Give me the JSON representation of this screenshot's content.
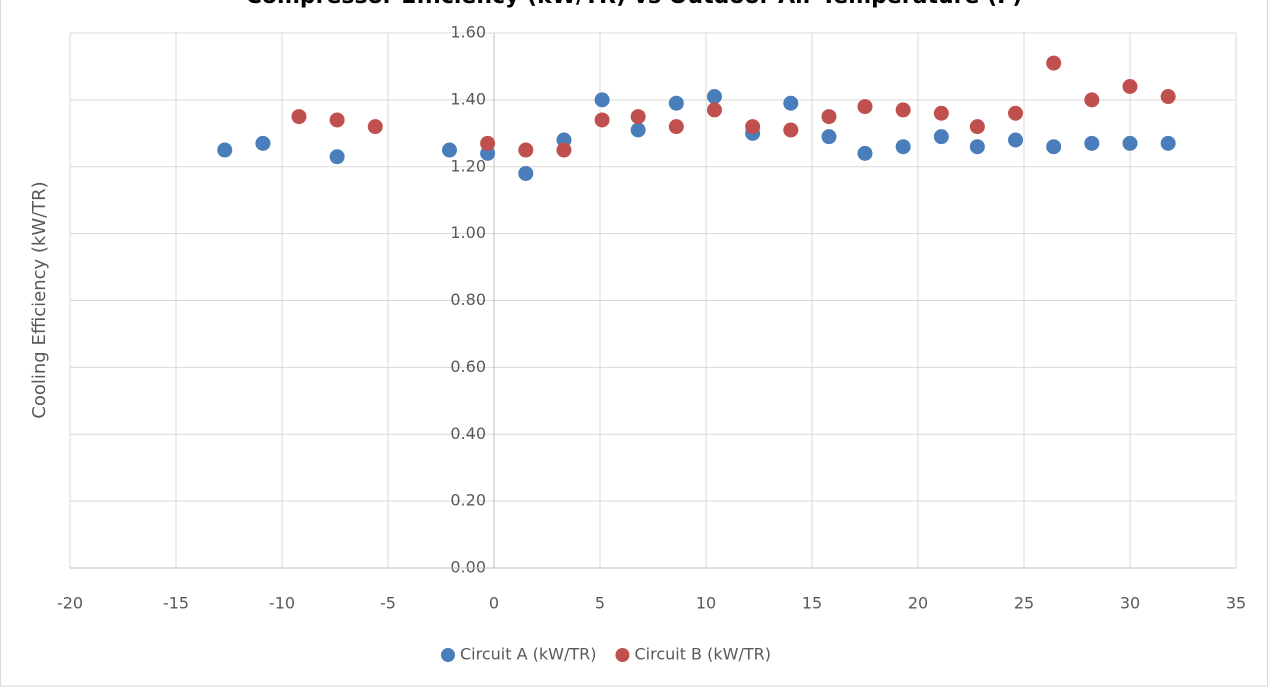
{
  "chart_data": {
    "type": "scatter",
    "title": "Compressor Efficiency (kW/TR) vs Outdoor Air Temperature (F)",
    "y_label": "Cooling Efficiency (kW/TR)",
    "xlim": [
      -20,
      35
    ],
    "xticks": [
      -20,
      -15,
      -10,
      -5,
      0,
      5,
      10,
      15,
      20,
      25,
      30,
      35
    ],
    "ylim": [
      0,
      1.6
    ],
    "yticks": [
      {
        "value": 0,
        "label": "0.00"
      },
      {
        "value": 0.2,
        "label": "0.20"
      },
      {
        "value": 0.4,
        "label": "0.40"
      },
      {
        "value": 0.6,
        "label": "0.60"
      },
      {
        "value": 0.8,
        "label": "0.80"
      },
      {
        "value": 1.0,
        "label": "1.00"
      },
      {
        "value": 1.2,
        "label": "1.20"
      },
      {
        "value": 1.4,
        "label": "1.40"
      },
      {
        "value": 1.6,
        "label": "1.60"
      }
    ],
    "grid": true,
    "legend": "bottom",
    "series": [
      {
        "name": "Circuit A (kW/TR)",
        "color": "#4a7ebb",
        "x": [
          -12.7,
          -10.9,
          -7.4,
          -2.1,
          -0.3,
          1.5,
          3.3,
          5.1,
          6.8,
          8.6,
          10.4,
          12.2,
          14.0,
          15.8,
          17.5,
          19.3,
          21.1,
          22.8,
          24.6,
          26.4,
          28.2,
          30.0,
          31.8
        ],
        "values": [
          1.25,
          1.27,
          1.23,
          1.25,
          1.24,
          1.18,
          1.28,
          1.4,
          1.31,
          1.39,
          1.41,
          1.3,
          1.39,
          1.29,
          1.24,
          1.26,
          1.29,
          1.26,
          1.28,
          1.26,
          1.27,
          1.27,
          1.27
        ]
      },
      {
        "name": "Circuit B (kW/TR)",
        "color": "#c0504d",
        "x": [
          -9.2,
          -7.4,
          -5.6,
          -0.3,
          1.5,
          3.3,
          5.1,
          6.8,
          8.6,
          10.4,
          12.2,
          14.0,
          15.8,
          17.5,
          19.3,
          21.1,
          22.8,
          24.6,
          26.4,
          28.2,
          30.0,
          31.8
        ],
        "values": [
          1.35,
          1.34,
          1.32,
          1.27,
          1.25,
          1.25,
          1.34,
          1.35,
          1.32,
          1.37,
          1.32,
          1.31,
          1.35,
          1.38,
          1.37,
          1.36,
          1.32,
          1.36,
          1.51,
          1.4,
          1.44,
          1.41
        ]
      }
    ]
  }
}
